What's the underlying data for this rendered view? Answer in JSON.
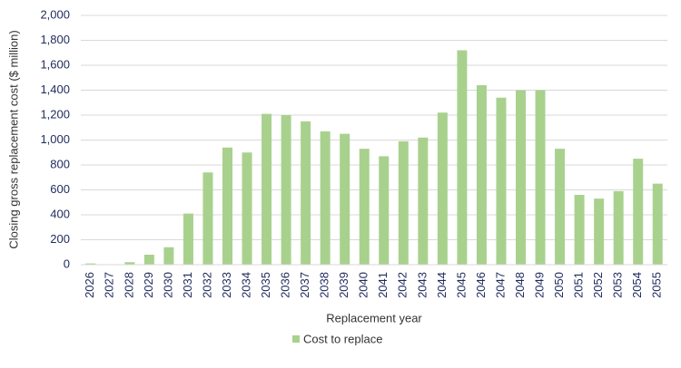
{
  "chart_data": {
    "type": "bar",
    "x_label": "Replacement year",
    "y_label": "Closing gross replacement cost ($ million)",
    "categories": [
      "2026",
      "2027",
      "2028",
      "2029",
      "2030",
      "2031",
      "2032",
      "2033",
      "2034",
      "2035",
      "2036",
      "2037",
      "2038",
      "2039",
      "2040",
      "2041",
      "2042",
      "2043",
      "2044",
      "2045",
      "2046",
      "2047",
      "2048",
      "2049",
      "2050",
      "2051",
      "2052",
      "2053",
      "2054",
      "2055"
    ],
    "series": [
      {
        "name": "Cost to replace",
        "color": "#a9d18e",
        "values": [
          10,
          0,
          20,
          80,
          140,
          410,
          740,
          940,
          900,
          1210,
          1200,
          1150,
          1070,
          1050,
          930,
          870,
          990,
          1020,
          1220,
          1720,
          1440,
          1340,
          1400,
          1400,
          930,
          560,
          530,
          590,
          850,
          650
        ]
      }
    ],
    "ylim": [
      0,
      2000
    ],
    "yticks": [
      0,
      200,
      400,
      600,
      800,
      {
        "value": 1000,
        "label": "1,000"
      },
      {
        "value": 1200,
        "label": "1,200"
      },
      {
        "value": 1400,
        "label": "1,400"
      },
      {
        "value": 1600,
        "label": "1,600"
      },
      {
        "value": 1800,
        "label": "1,800"
      },
      {
        "value": 2000,
        "label": "2,000"
      }
    ],
    "grid": true,
    "legend": "bottom"
  }
}
